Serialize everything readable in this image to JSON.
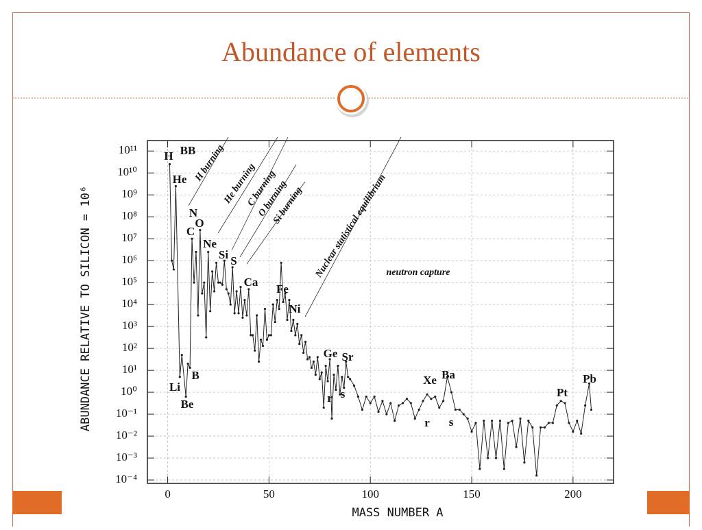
{
  "chart_data": {
    "type": "line",
    "title": "Abundance of elements",
    "x_label": "MASS NUMBER A",
    "y_label": "ABUNDANCE RELATIVE TO SILICON = 10⁶",
    "log_y": true,
    "grid": true,
    "color": "#222",
    "xlim": [
      -10,
      220
    ],
    "xticks": [
      0,
      50,
      100,
      150,
      200
    ],
    "ylim": [
      7e-05,
      300000000000.0
    ],
    "yticks": [
      {
        "value": 100000000000.0,
        "label": "10¹¹"
      },
      {
        "value": 10000000000.0,
        "label": "10¹⁰"
      },
      {
        "value": 1000000000.0,
        "label": "10⁹"
      },
      {
        "value": 100000000.0,
        "label": "10⁸"
      },
      {
        "value": 10000000.0,
        "label": "10⁷"
      },
      {
        "value": 1000000.0,
        "label": "10⁶"
      },
      {
        "value": 100000.0,
        "label": "10⁵"
      },
      {
        "value": 10000.0,
        "label": "10⁴"
      },
      {
        "value": 1000.0,
        "label": "10³"
      },
      {
        "value": 100.0,
        "label": "10²"
      },
      {
        "value": 10.0,
        "label": "10¹"
      },
      {
        "value": 1,
        "label": "10⁰"
      },
      {
        "value": 0.1,
        "label": "10⁻¹"
      },
      {
        "value": 0.01,
        "label": "10⁻²"
      },
      {
        "value": 0.001,
        "label": "10⁻³"
      },
      {
        "value": 0.0001,
        "label": "10⁻⁴"
      }
    ],
    "annotations": [
      "H",
      "BB",
      "He",
      "N",
      "O",
      "C",
      "Ne",
      "Si",
      "S",
      "Ca",
      "Fe",
      "Ni",
      "Ge",
      "Sr",
      "Li",
      "B",
      "Be",
      "r",
      "s",
      "Xe",
      "Ba",
      "r",
      "s",
      "Pt",
      "Pb",
      "neutron capture",
      "H burning",
      "He burning",
      "C burning",
      "O burning",
      "Si burning",
      "Nuclear statistical equilibrium"
    ],
    "x": [
      1,
      2,
      3,
      4,
      6,
      7,
      9,
      10,
      11,
      12,
      13,
      14,
      15,
      16,
      17,
      18,
      19,
      20,
      21,
      22,
      23,
      24,
      25,
      26,
      27,
      28,
      29,
      30,
      31,
      32,
      33,
      34,
      35,
      36,
      37,
      38,
      39,
      40,
      41,
      42,
      43,
      44,
      45,
      46,
      47,
      48,
      49,
      50,
      51,
      52,
      53,
      54,
      55,
      56,
      57,
      58,
      59,
      60,
      61,
      62,
      63,
      64,
      65,
      66,
      67,
      68,
      69,
      70,
      71,
      72,
      73,
      74,
      75,
      76,
      77,
      78,
      79,
      80,
      81,
      82,
      83,
      84,
      85,
      86,
      87,
      88,
      89,
      90,
      92,
      94,
      96,
      98,
      100,
      102,
      104,
      106,
      108,
      110,
      112,
      114,
      116,
      118,
      120,
      122,
      124,
      126,
      128,
      130,
      132,
      134,
      136,
      138,
      140,
      142,
      144,
      146,
      148,
      150,
      152,
      154,
      156,
      158,
      160,
      162,
      164,
      166,
      168,
      170,
      172,
      174,
      176,
      178,
      180,
      182,
      184,
      186,
      188,
      190,
      192,
      194,
      196,
      198,
      200,
      202,
      204,
      206,
      208,
      209
    ],
    "values": [
      25000000000.0,
      1000000.0,
      400000.0,
      2500000000.0,
      5,
      50,
      0.63,
      20,
      13,
      10000000.0,
      100000.0,
      2500000.0,
      3200,
      25000000.0,
      32000.0,
      100000.0,
      320,
      2500000.0,
      5000,
      320000.0,
      40000.0,
      800000.0,
      100000.0,
      100000.0,
      80000.0,
      1000000.0,
      50000.0,
      32000.0,
      10000.0,
      500000.0,
      4000,
      40000.0,
      4000,
      63000.0,
      2500,
      16000.0,
      3200,
      50000.0,
      400,
      400,
      80,
      3200,
      25,
      250,
      130,
      6300,
      250,
      400,
      400,
      10000.0,
      1600,
      16000.0,
      6300,
      800000.0,
      13000.0,
      32000.0,
      2000,
      16000.0,
      630,
      2000,
      400,
      1300,
      160,
      400,
      63,
      200,
      32,
      40,
      13,
      25,
      6.3,
      40,
      4,
      8,
      0.2,
      16,
      3.2,
      32,
      0.063,
      6.3,
      1.3,
      16,
      0.8,
      5,
      1.6,
      25,
      5,
      4,
      2,
      0.63,
      0.16,
      0.63,
      0.32,
      0.63,
      0.13,
      0.4,
      0.1,
      0.32,
      0.05,
      0.25,
      0.32,
      0.5,
      0.32,
      0.063,
      0.16,
      0.4,
      0.8,
      0.5,
      0.63,
      0.2,
      0.4,
      5,
      1,
      0.16,
      0.16,
      0.1,
      0.063,
      0.016,
      0.04,
      0.00032,
      0.05,
      0.001,
      0.05,
      0.001,
      0.05,
      0.00032,
      0.04,
      0.05,
      0.0032,
      0.063,
      0.00063,
      0.05,
      0.025,
      0.00016,
      0.025,
      0.025,
      0.04,
      0.04,
      0.25,
      0.4,
      0.32,
      0.04,
      0.016,
      0.05,
      0.013,
      0.25,
      2.5,
      0.16
    ]
  }
}
